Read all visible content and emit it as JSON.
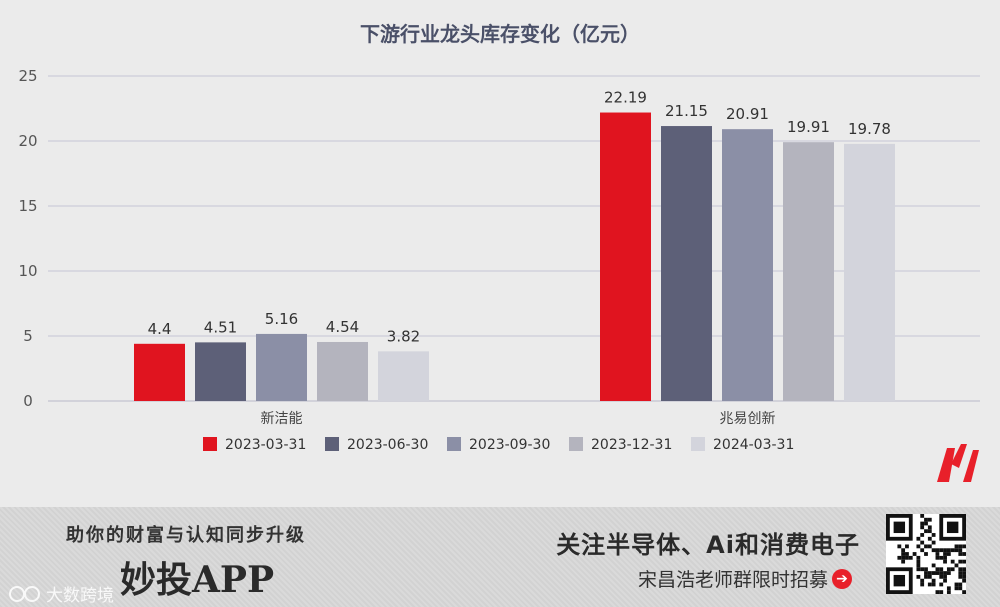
{
  "chart_data": {
    "type": "bar",
    "title": "下游行业龙头库存变化（亿元）",
    "categories": [
      "新洁能",
      "兆易创新"
    ],
    "series": [
      {
        "name": "2023-03-31",
        "values": [
          4.4,
          22.19
        ],
        "color": "#e0141f"
      },
      {
        "name": "2023-06-30",
        "values": [
          4.51,
          21.15
        ],
        "color": "#5d6078"
      },
      {
        "name": "2023-09-30",
        "values": [
          5.16,
          20.91
        ],
        "color": "#8b8fa6"
      },
      {
        "name": "2023-12-31",
        "values": [
          4.54,
          19.91
        ],
        "color": "#b4b4be"
      },
      {
        "name": "2024-03-31",
        "values": [
          3.82,
          19.78
        ],
        "color": "#d3d4dc"
      }
    ],
    "data_labels": [
      [
        "4.4",
        "22.19"
      ],
      [
        "4.51",
        "21.15"
      ],
      [
        "5.16",
        "20.91"
      ],
      [
        "4.54",
        "19.91"
      ],
      [
        "3.82",
        "19.78"
      ]
    ],
    "ylim": [
      0,
      25
    ],
    "yticks": [
      0,
      5,
      10,
      15,
      20,
      25
    ],
    "xlabel": "",
    "ylabel": "",
    "grid": true,
    "legend_position": "bottom"
  },
  "footer": {
    "slogan": "助你的财富与认知同步升级",
    "app_name": "妙投APP",
    "headline": "关注半导体、Ai和消费电子",
    "subline": "宋昌浩老师群限时招募",
    "watermark": "大数跨境"
  },
  "icons": {
    "brand_logo": "m-logo-icon",
    "arrow": "arrow-right-icon",
    "qr": "qr-code-icon",
    "watermark": "watermark-icon"
  }
}
